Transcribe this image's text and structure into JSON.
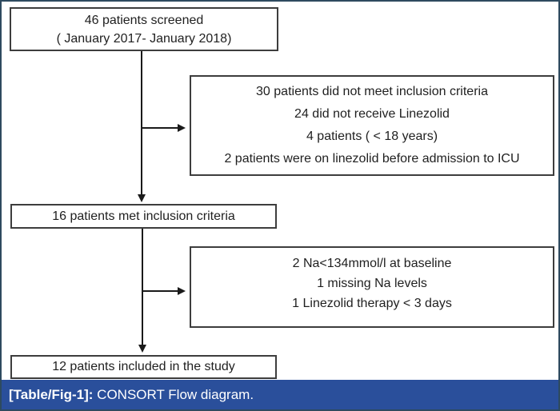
{
  "figure": {
    "type": "consort-flow-diagram"
  },
  "boxes": {
    "screened": {
      "lines": [
        "46 patients screened",
        "( January 2017- January 2018)"
      ]
    },
    "excluded1": {
      "lines": [
        "30 patients did not meet inclusion criteria",
        "24 did not receive Linezolid",
        "4 patients ( < 18 years)",
        "2 patients were on linezolid before admission to ICU"
      ]
    },
    "met": {
      "lines": [
        "16 patients met inclusion criteria"
      ]
    },
    "excluded2": {
      "lines": [
        "2 Na<134mmol/l at baseline",
        "1 missing Na levels",
        "1 Linezolid therapy < 3 days"
      ]
    },
    "included": {
      "lines": [
        "12 patients included in the study"
      ]
    }
  },
  "caption": {
    "label": "[Table/Fig-1]:",
    "text": " CONSORT Flow diagram."
  },
  "colors": {
    "caption_bg": "#2a4f9b",
    "frame_border": "#2e4a5f",
    "box_border": "#3d3d3d",
    "arrow": "#1a1a1a"
  }
}
